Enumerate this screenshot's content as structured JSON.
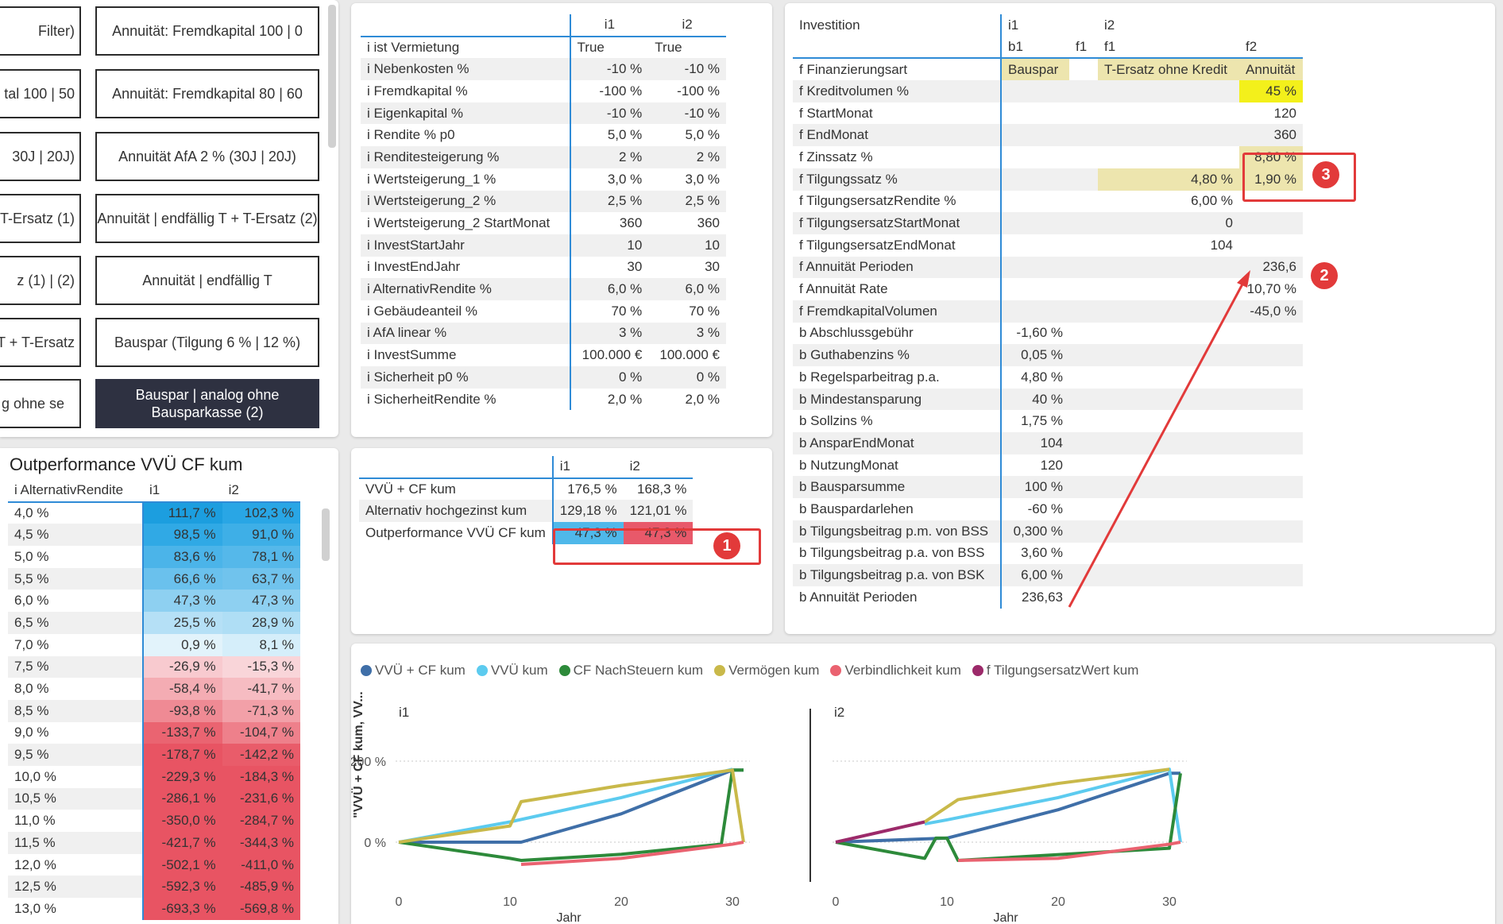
{
  "buttons": [
    {
      "label": "Filter)",
      "style": "leftcut"
    },
    {
      "label": "Annuität: Fremdkapital 100 | 0"
    },
    {
      "label": "tal 100 | 50",
      "style": "leftcut"
    },
    {
      "label": "Annuität: Fremdkapital 80 | 60"
    },
    {
      "label": "30J | 20J)",
      "style": "leftcut"
    },
    {
      "label": "Annuität AfA 2 % (30J | 20J)"
    },
    {
      "label": "+ T-Ersatz (1)",
      "style": "leftcut"
    },
    {
      "label": "Annuität | endfällig T + T-Ersatz (2)"
    },
    {
      "label": "z (1) | (2)",
      "style": "leftcut"
    },
    {
      "label": "Annuität | endfällig T"
    },
    {
      "label": "T + T-Ersatz",
      "style": "leftcut"
    },
    {
      "label": "Bauspar (Tilgung 6 % | 12 %)"
    },
    {
      "label": "g ohne se",
      "style": "leftcut2"
    },
    {
      "label": "Bauspar | analog ohne Bausparkasse (2)",
      "style": "dark"
    }
  ],
  "params": {
    "cols": [
      "i1",
      "i2"
    ],
    "rows": [
      [
        "i ist Vermietung",
        "True",
        "True"
      ],
      [
        "i Nebenkosten %",
        "-10 %",
        "-10 %"
      ],
      [
        "i Fremdkapital %",
        "-100 %",
        "-100 %"
      ],
      [
        "i Eigenkapital %",
        "-10 %",
        "-10 %"
      ],
      [
        "i Rendite % p0",
        "5,0 %",
        "5,0 %"
      ],
      [
        "i Renditesteigerung %",
        "2 %",
        "2 %"
      ],
      [
        "i Wertsteigerung_1 %",
        "3,0 %",
        "3,0 %"
      ],
      [
        "i Wertsteigerung_2 %",
        "2,5 %",
        "2,5 %"
      ],
      [
        "i Wertsteigerung_2 StartMonat",
        "360",
        "360"
      ],
      [
        "i InvestStartJahr",
        "10",
        "10"
      ],
      [
        "i InvestEndJahr",
        "30",
        "30"
      ],
      [
        "i AlternativRendite %",
        "6,0 %",
        "6,0 %"
      ],
      [
        "i Gebäudeanteil %",
        "70 %",
        "70 %"
      ],
      [
        "i AfA linear %",
        "3 %",
        "3 %"
      ],
      [
        "i InvestSumme",
        "100.000 €",
        "100.000 €"
      ],
      [
        "i Sicherheit p0 %",
        "0 %",
        "0 %"
      ],
      [
        "i SicherheitRendite %",
        "2,0 %",
        "2,0 %"
      ]
    ]
  },
  "invest": {
    "header1": [
      "Investition",
      "i1",
      "",
      "i2",
      ""
    ],
    "header2": [
      "",
      "b1",
      "f1",
      "f1",
      "f2"
    ],
    "rows": [
      [
        "f Finanzierungsart",
        "Bauspar",
        "",
        "T-Ersatz ohne Kredit",
        "Annuität"
      ],
      [
        "f Kreditvolumen %",
        "",
        "",
        "",
        "45 %"
      ],
      [
        "f StartMonat",
        "",
        "",
        "",
        "120"
      ],
      [
        "f EndMonat",
        "",
        "",
        "",
        "360"
      ],
      [
        "f Zinssatz %",
        "",
        "",
        "",
        "8,80 %"
      ],
      [
        "f Tilgungssatz %",
        "",
        "",
        "4,80 %",
        "1,90 %"
      ],
      [
        "f TilgungsersatzRendite %",
        "",
        "",
        "6,00 %",
        ""
      ],
      [
        "f TilgungsersatzStartMonat",
        "",
        "",
        "0",
        ""
      ],
      [
        "f TilgungsersatzEndMonat",
        "",
        "",
        "104",
        ""
      ],
      [
        "f Annuität Perioden",
        "",
        "",
        "",
        "236,6"
      ],
      [
        "f Annuität Rate",
        "",
        "",
        "",
        "10,70 %"
      ],
      [
        "f FremdkapitalVolumen",
        "",
        "",
        "",
        "-45,0 %"
      ],
      [
        "b Abschlussgebühr",
        "-1,60 %",
        "",
        "",
        ""
      ],
      [
        "b Guthabenzins %",
        "0,05 %",
        "",
        "",
        ""
      ],
      [
        "b Regelsparbeitrag p.a.",
        "4,80 %",
        "",
        "",
        ""
      ],
      [
        "b Mindestansparung",
        "40 %",
        "",
        "",
        ""
      ],
      [
        "b Sollzins %",
        "1,75 %",
        "",
        "",
        ""
      ],
      [
        "b AnsparEndMonat",
        "104",
        "",
        "",
        ""
      ],
      [
        "b NutzungMonat",
        "120",
        "",
        "",
        ""
      ],
      [
        "b Bausparsumme",
        "100 %",
        "",
        "",
        ""
      ],
      [
        "b Bauspardarlehen",
        "-60 %",
        "",
        "",
        ""
      ],
      [
        "b Tilgungsbeitrag p.m. von BSS",
        "0,300 %",
        "",
        "",
        ""
      ],
      [
        "b Tilgungsbeitrag p.a. von BSS",
        "3,60 %",
        "",
        "",
        ""
      ],
      [
        "b Tilgungsbeitrag p.a. von BSK",
        "6,00 %",
        "",
        "",
        ""
      ],
      [
        "b Annuität Perioden",
        "236,63",
        "",
        "",
        ""
      ]
    ]
  },
  "outperf": {
    "title": "Outperformance VVÜ CF kum",
    "cols": [
      "i AlternativRendite",
      "i1",
      "i2"
    ],
    "rows": [
      [
        "4,0 %",
        "111,7 %",
        "102,3 %"
      ],
      [
        "4,5 %",
        "98,5 %",
        "91,0 %"
      ],
      [
        "5,0 %",
        "83,6 %",
        "78,1 %"
      ],
      [
        "5,5 %",
        "66,6 %",
        "63,7 %"
      ],
      [
        "6,0 %",
        "47,3 %",
        "47,3 %"
      ],
      [
        "6,5 %",
        "25,5 %",
        "28,9 %"
      ],
      [
        "7,0 %",
        "0,9 %",
        "8,1 %"
      ],
      [
        "7,5 %",
        "-26,9 %",
        "-15,3 %"
      ],
      [
        "8,0 %",
        "-58,4 %",
        "-41,7 %"
      ],
      [
        "8,5 %",
        "-93,8 %",
        "-71,3 %"
      ],
      [
        "9,0 %",
        "-133,7 %",
        "-104,7 %"
      ],
      [
        "9,5 %",
        "-178,7 %",
        "-142,2 %"
      ],
      [
        "10,0 %",
        "-229,3 %",
        "-184,3 %"
      ],
      [
        "10,5 %",
        "-286,1 %",
        "-231,6 %"
      ],
      [
        "11,0 %",
        "-350,0 %",
        "-284,7 %"
      ],
      [
        "11,5 %",
        "-421,7 %",
        "-344,3 %"
      ],
      [
        "12,0 %",
        "-502,1 %",
        "-411,0 %"
      ],
      [
        "12,5 %",
        "-592,3 %",
        "-485,9 %"
      ],
      [
        "13,0 %",
        "-693,3 %",
        "-569,8 %"
      ]
    ]
  },
  "summary": {
    "cols": [
      "i1",
      "i2"
    ],
    "rows": [
      [
        "VVÜ + CF kum",
        "176,5 %",
        "168,3 %"
      ],
      [
        "Alternativ hochgezinst kum",
        "129,18 %",
        "121,01 %"
      ],
      [
        "Outperformance VVÜ CF kum",
        "47,3 %",
        "47,3 %"
      ]
    ]
  },
  "badges": [
    "1",
    "2",
    "3"
  ],
  "colors": {
    "accent": "#2f8bd6",
    "badge": "#e23a3a",
    "posStrong": "#4fb8ea",
    "neg": "#e8596a",
    "yellow": "#f3f01b",
    "beige": "#ede5ae"
  },
  "legend": [
    {
      "label": "VVÜ + CF kum",
      "color": "#3f6fa8"
    },
    {
      "label": "VVÜ kum",
      "color": "#5ccbef"
    },
    {
      "label": "CF NachSteuern kum",
      "color": "#2d8a3a"
    },
    {
      "label": "Vermögen kum",
      "color": "#c9b94a"
    },
    {
      "label": "Verbindlichkeit kum",
      "color": "#ea6270"
    },
    {
      "label": "f TilgungsersatzWert kum",
      "color": "#9c2a6a"
    }
  ],
  "chart_data": [
    {
      "type": "line",
      "panel": "i1",
      "xlabel": "Jahr",
      "ylabel": "\"VVÜ + CF kum, VV...",
      "x_ticks": [
        0,
        10,
        20,
        30
      ],
      "y_ticks": [
        "0 %",
        "200 %"
      ],
      "ylim": [
        -60,
        200
      ],
      "series": [
        {
          "name": "VVÜ + CF kum",
          "x": [
            0,
            11,
            20,
            30,
            31
          ],
          "y": [
            0,
            0,
            70,
            178,
            178
          ]
        },
        {
          "name": "VVÜ kum",
          "x": [
            0,
            10,
            20,
            30
          ],
          "y": [
            0,
            50,
            110,
            180
          ]
        },
        {
          "name": "CF NachSteuern kum",
          "x": [
            0,
            10,
            11,
            20,
            29,
            30,
            31
          ],
          "y": [
            0,
            -40,
            -45,
            -30,
            -5,
            178,
            178
          ]
        },
        {
          "name": "Vermögen kum",
          "x": [
            0,
            10,
            11,
            20,
            30,
            31
          ],
          "y": [
            0,
            40,
            100,
            140,
            178,
            0
          ]
        },
        {
          "name": "Verbindlichkeit kum",
          "x": [
            11,
            20,
            30,
            31
          ],
          "y": [
            -55,
            -40,
            -5,
            0
          ]
        }
      ]
    },
    {
      "type": "line",
      "panel": "i2",
      "xlabel": "Jahr",
      "x_ticks": [
        0,
        10,
        20,
        30
      ],
      "ylim": [
        -60,
        200
      ],
      "series": [
        {
          "name": "VVÜ + CF kum",
          "x": [
            0,
            10,
            20,
            30,
            31
          ],
          "y": [
            0,
            10,
            80,
            170,
            170
          ]
        },
        {
          "name": "VVÜ kum",
          "x": [
            8,
            10,
            20,
            30,
            31
          ],
          "y": [
            45,
            55,
            110,
            180,
            0
          ]
        },
        {
          "name": "CF NachSteuern kum",
          "x": [
            0,
            8,
            9,
            10,
            11,
            30,
            31
          ],
          "y": [
            0,
            -40,
            10,
            10,
            -45,
            -15,
            170
          ]
        },
        {
          "name": "Vermögen kum",
          "x": [
            8,
            11,
            20,
            30
          ],
          "y": [
            50,
            105,
            145,
            180
          ]
        },
        {
          "name": "Verbindlichkeit kum",
          "x": [
            11,
            20,
            30,
            31
          ],
          "y": [
            -45,
            -40,
            -5,
            0
          ]
        },
        {
          "name": "f TilgungsersatzWert kum",
          "x": [
            0,
            8
          ],
          "y": [
            0,
            50
          ]
        }
      ]
    }
  ]
}
